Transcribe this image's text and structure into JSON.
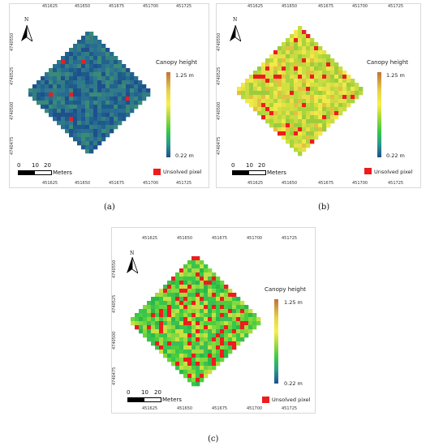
{
  "x_ticks": [
    "451625",
    "451650",
    "451675",
    "451700",
    "451725"
  ],
  "y_ticks": [
    "4740550",
    "4740525",
    "4740500",
    "4740475"
  ],
  "north_label": "N",
  "legend": {
    "title": "Canopy height",
    "max_label": "1.25 m",
    "min_label": "0.22 m",
    "unsolved_label": "Unsolved pixel",
    "colors": {
      "high": "#c0713a",
      "mid_high": "#f7f04a",
      "mid": "#35c84a",
      "low": "#1f4f8f",
      "unsolved": "#ee1c1c"
    }
  },
  "scale": {
    "zero": "0",
    "ten": "10",
    "twenty": "20",
    "unit": "Meters"
  },
  "panels": [
    {
      "caption": "(a)",
      "palette": "low"
    },
    {
      "caption": "(b)",
      "palette": "mid"
    },
    {
      "caption": "(c)",
      "palette": "green"
    }
  ]
}
